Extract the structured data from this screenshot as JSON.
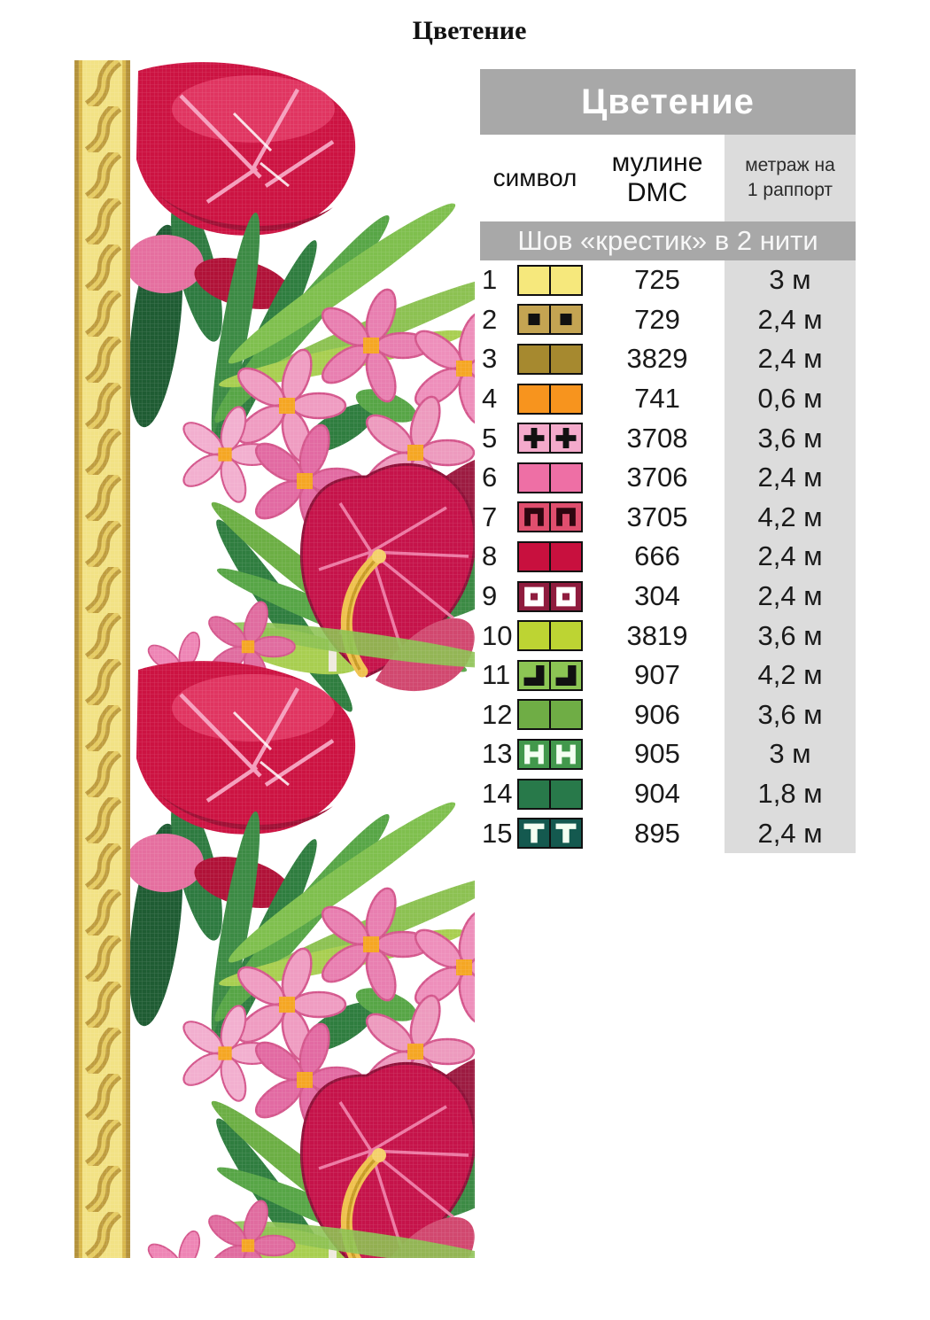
{
  "page_title": "Цветение",
  "legend": {
    "title": "Цветение",
    "columns": {
      "symbol": "символ",
      "floss_line1": "мулине",
      "floss_line2": "DMC",
      "meterage_line1": "метраж на",
      "meterage_line2": "1 раппорт"
    },
    "subheader": "Шов «крестик» в 2 нити",
    "rows": [
      {
        "num": "1",
        "dmc": "725",
        "length": "3 м",
        "color": "#F6E87C",
        "symbol": "none",
        "symbol_color": ""
      },
      {
        "num": "2",
        "dmc": "729",
        "length": "2,4 м",
        "color": "#C4A452",
        "symbol": "filled-square",
        "symbol_color": "#111111"
      },
      {
        "num": "3",
        "dmc": "3829",
        "length": "2,4 м",
        "color": "#A6892F",
        "symbol": "none",
        "symbol_color": ""
      },
      {
        "num": "4",
        "dmc": "741",
        "length": "0,6 м",
        "color": "#F7941E",
        "symbol": "none",
        "symbol_color": ""
      },
      {
        "num": "5",
        "dmc": "3708",
        "length": "3,6 м",
        "color": "#F4AACB",
        "symbol": "plus",
        "symbol_color": "#111111"
      },
      {
        "num": "6",
        "dmc": "3706",
        "length": "2,4 м",
        "color": "#EE6FA5",
        "symbol": "none",
        "symbol_color": ""
      },
      {
        "num": "7",
        "dmc": "3705",
        "length": "4,2 м",
        "color": "#E04E6E",
        "symbol": "pi",
        "symbol_color": "#2d060f"
      },
      {
        "num": "8",
        "dmc": "666",
        "length": "2,4 м",
        "color": "#C8103E",
        "symbol": "none",
        "symbol_color": ""
      },
      {
        "num": "9",
        "dmc": "304",
        "length": "2,4 м",
        "color": "#8F1C3E",
        "symbol": "hollow-square",
        "symbol_color": "#FFFFFF"
      },
      {
        "num": "10",
        "dmc": "3819",
        "length": "3,6 м",
        "color": "#BDD433",
        "symbol": "none",
        "symbol_color": ""
      },
      {
        "num": "11",
        "dmc": "907",
        "length": "4,2 м",
        "color": "#8CC554",
        "symbol": "corner",
        "symbol_color": "#111111"
      },
      {
        "num": "12",
        "dmc": "906",
        "length": "3,6 м",
        "color": "#6FAD45",
        "symbol": "none",
        "symbol_color": ""
      },
      {
        "num": "13",
        "dmc": "905",
        "length": "3 м",
        "color": "#42984C",
        "symbol": "H",
        "symbol_color": "#F4FFF2"
      },
      {
        "num": "14",
        "dmc": "904",
        "length": "1,8 м",
        "color": "#28794A",
        "symbol": "none",
        "symbol_color": ""
      },
      {
        "num": "15",
        "dmc": "895",
        "length": "2,4 м",
        "color": "#14594F",
        "symbol": "T",
        "symbol_color": "#F4FFF2"
      }
    ]
  },
  "colors": {
    "table_header_bg": "#A8A8A8",
    "meterage_column_bg": "#DCDCDC",
    "header_text": "#FFFFFF",
    "body_text": "#1A1A1A",
    "swatch_border": "#111111",
    "braid_gold_light": "#F2E285",
    "braid_gold": "#D9B84C",
    "braid_gold_dark": "#B3913B",
    "flower_pink_light": "#F2A8CA",
    "flower_pink": "#EE6FA5",
    "flower_crimson": "#C81240",
    "flower_maroon": "#8E1B3C",
    "flower_center_orange": "#F5A623",
    "leaf_green_light": "#A8CE50",
    "leaf_green": "#57A546",
    "leaf_green_dark": "#2F7D3F",
    "spadix_yellow": "#EFC14D"
  }
}
